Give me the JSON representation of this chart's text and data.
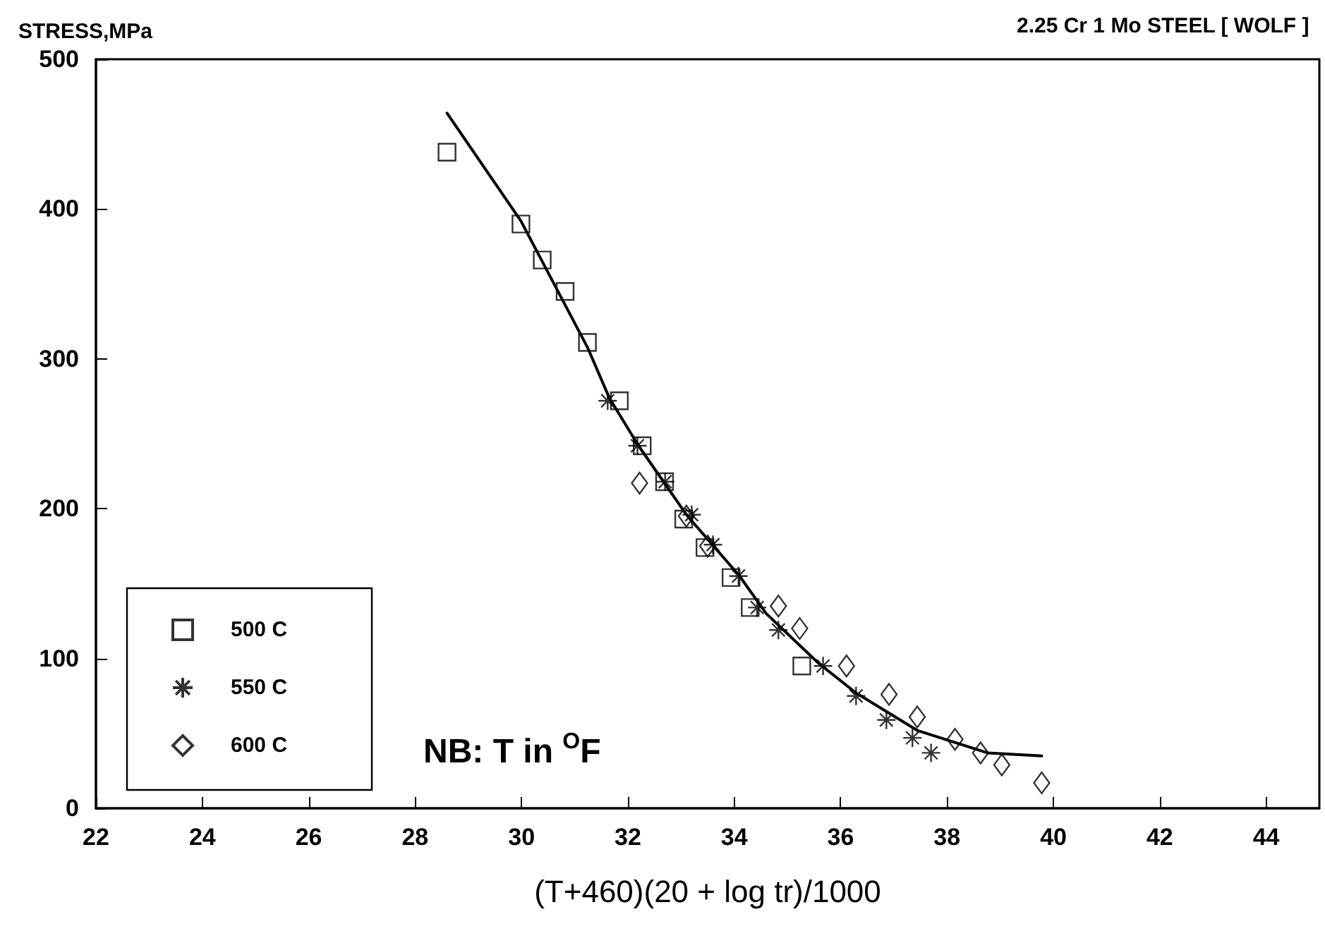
{
  "chart_data": {
    "type": "scatter",
    "title": "2.25 Cr 1 Mo STEEL [ WOLF ]",
    "ylabel": "STRESS,MPa",
    "xlabel": "(T+460)(20 + log tr)/1000",
    "annotations": [
      "NB: T in $^{O}$F"
    ],
    "xlim": [
      22,
      45
    ],
    "xticks": [
      22,
      24,
      26,
      28,
      30,
      32,
      34,
      36,
      38,
      40,
      42,
      44
    ],
    "ylim": [
      0,
      500
    ],
    "yticks": [
      0,
      100,
      200,
      300,
      400,
      500
    ],
    "grid": false,
    "legend": "bottom left",
    "series": [
      {
        "name": "500 C",
        "color": "#000000",
        "marker": "square",
        "x": [
          28.6,
          29.99,
          30.39,
          30.82,
          31.24,
          31.84,
          32.27,
          32.69,
          33.05,
          33.45,
          33.94,
          34.3,
          35.27
        ],
        "values": [
          438,
          390,
          366,
          345,
          311,
          272,
          242,
          218,
          193,
          174,
          154,
          134,
          95
        ]
      },
      {
        "name": "550 C",
        "color": "#000000",
        "marker": "cross",
        "x": [
          31.62,
          32.18,
          32.7,
          33.2,
          33.6,
          34.08,
          34.43,
          34.83,
          35.67,
          36.29,
          36.86,
          37.35,
          37.7
        ],
        "values": [
          272,
          242,
          218,
          196,
          176,
          155,
          134,
          119,
          95,
          75,
          59,
          47,
          37
        ]
      },
      {
        "name": "600 C",
        "color": "#000000",
        "marker": "diamond",
        "x": [
          32.22,
          33.1,
          33.5,
          34.83,
          35.23,
          36.11,
          36.91,
          37.44,
          38.15,
          38.63,
          39.03,
          39.78
        ],
        "values": [
          217,
          195,
          175,
          135,
          120,
          95,
          76,
          61,
          46,
          37,
          29,
          17
        ]
      },
      {
        "type": "line",
        "color": "#000000",
        "marker": "none",
        "line_style": "solid",
        "x": [
          28.6,
          29.99,
          31.25,
          31.65,
          32.2,
          33.1,
          34.1,
          34.6,
          35.58,
          36.29,
          37.44,
          38.76,
          39.78
        ],
        "values": [
          464,
          392,
          307,
          274,
          242,
          196,
          155,
          130,
          97,
          77,
          52,
          37,
          35
        ]
      }
    ]
  }
}
